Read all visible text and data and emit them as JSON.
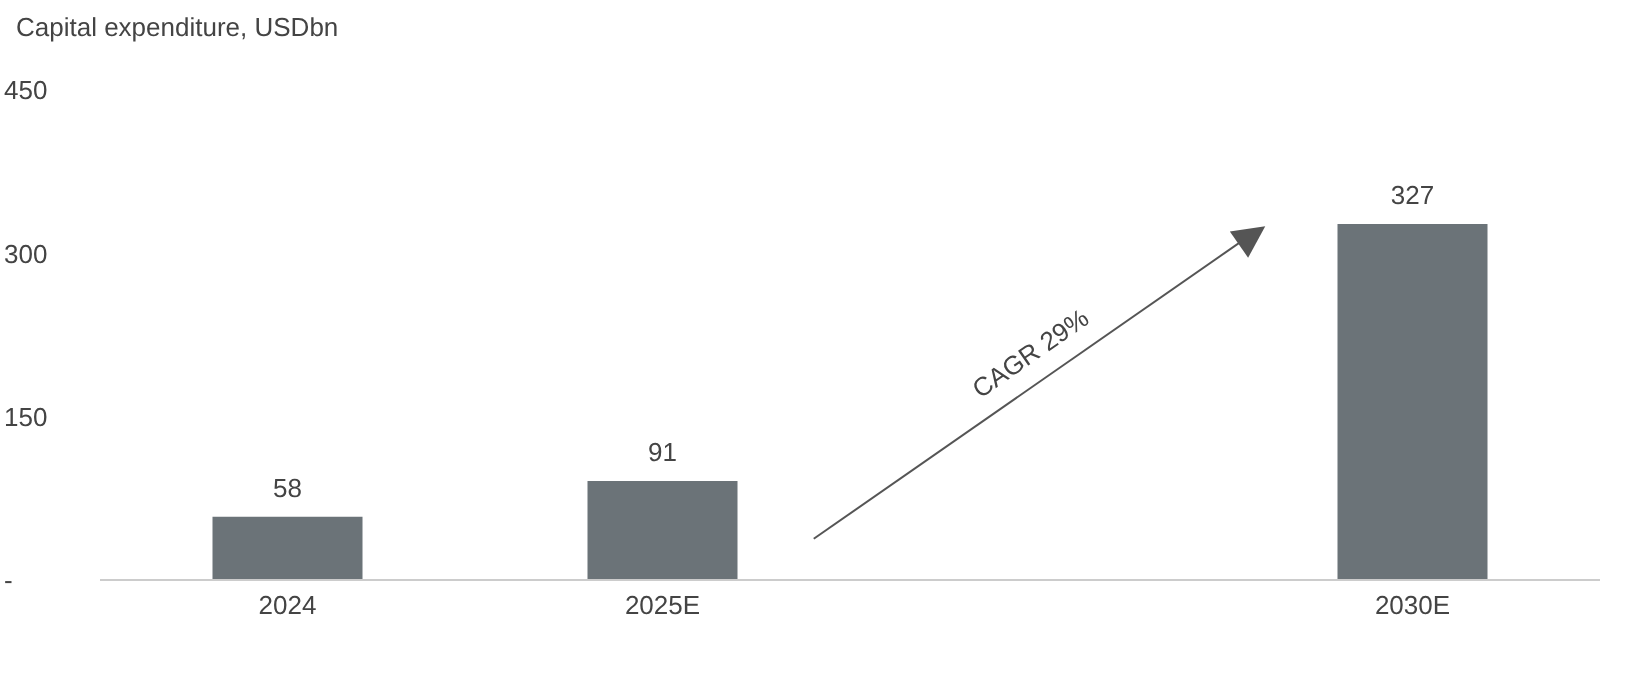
{
  "chart_data": {
    "type": "bar",
    "ylabel": "Capital expenditure, USDbn",
    "categories": [
      "2024",
      "2025E",
      null,
      "2030E"
    ],
    "values": [
      58,
      91,
      null,
      327
    ],
    "color": "#6b7378",
    "ylim": [
      0,
      450
    ],
    "yticks": [
      {
        "value": 0,
        "label": "-"
      },
      150,
      300,
      450
    ],
    "data_labels": true,
    "grid": false,
    "annotations": [
      "CAGR 29%"
    ]
  }
}
